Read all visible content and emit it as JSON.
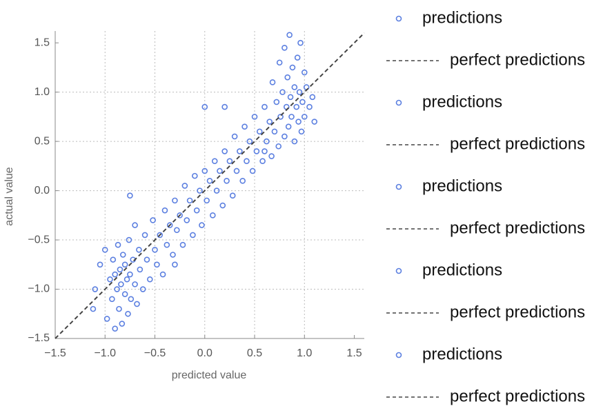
{
  "chart_data": {
    "type": "scatter",
    "x_label": "predicted value",
    "y_label": "actual value",
    "xlim": [
      -1.5,
      1.6
    ],
    "ylim": [
      -1.5,
      1.62
    ],
    "xticks": [
      {
        "value": -1.5,
        "label": "−1.5"
      },
      {
        "value": -1.0,
        "label": "−1.0"
      },
      {
        "value": -0.5,
        "label": "−0.5"
      },
      {
        "value": 0,
        "label": "0.0"
      },
      0.5,
      {
        "value": 1.0,
        "label": "1.0"
      },
      1.5
    ],
    "yticks": [
      {
        "value": -1.5,
        "label": "−1.5"
      },
      {
        "value": -1.0,
        "label": "−1.0"
      },
      {
        "value": -0.5,
        "label": "−0.5"
      },
      {
        "value": 0,
        "label": "0.0"
      },
      0.5,
      {
        "value": 1.0,
        "label": "1.0"
      },
      1.5
    ],
    "grid": true,
    "series": [
      {
        "name": "predictions",
        "kind": "points",
        "color": "#5b7fe0",
        "x": [
          -1.1,
          -1.12,
          -1.05,
          -1.0,
          -0.98,
          -0.95,
          -0.93,
          -0.92,
          -0.9,
          -0.9,
          -0.88,
          -0.87,
          -0.86,
          -0.85,
          -0.84,
          -0.83,
          -0.82,
          -0.8,
          -0.8,
          -0.78,
          -0.77,
          -0.76,
          -0.75,
          -0.74,
          -0.72,
          -0.7,
          -0.7,
          -0.68,
          -0.66,
          -0.65,
          -0.62,
          -0.6,
          -0.58,
          -0.55,
          -0.52,
          -0.5,
          -0.48,
          -0.45,
          -0.42,
          -0.4,
          -0.38,
          -0.35,
          -0.32,
          -0.3,
          -0.28,
          -0.25,
          -0.22,
          -0.2,
          -0.18,
          -0.15,
          -0.12,
          -0.1,
          -0.08,
          -0.05,
          -0.03,
          0.0,
          0.02,
          0.05,
          0.08,
          0.1,
          0.12,
          0.15,
          0.18,
          0.2,
          0.22,
          0.25,
          0.28,
          0.3,
          0.32,
          0.35,
          0.38,
          0.4,
          0.42,
          0.45,
          0.48,
          0.5,
          0.52,
          0.55,
          0.58,
          0.6,
          0.62,
          0.65,
          0.67,
          0.68,
          0.7,
          0.72,
          0.74,
          0.75,
          0.76,
          0.78,
          0.8,
          0.8,
          0.82,
          0.83,
          0.84,
          0.85,
          0.86,
          0.87,
          0.88,
          0.9,
          0.9,
          0.92,
          0.93,
          0.94,
          0.95,
          0.96,
          0.97,
          0.98,
          1.0,
          1.0,
          1.02,
          1.05,
          1.08,
          1.1,
          0.2,
          0.0,
          -0.3,
          0.6,
          -0.75
        ],
        "y": [
          -1.0,
          -1.2,
          -0.75,
          -0.6,
          -1.3,
          -0.9,
          -1.1,
          -0.7,
          -1.4,
          -0.85,
          -1.0,
          -0.55,
          -1.2,
          -0.8,
          -0.95,
          -1.35,
          -0.65,
          -1.05,
          -0.75,
          -0.9,
          -1.25,
          -0.5,
          -0.85,
          -1.1,
          -0.7,
          -0.95,
          -0.35,
          -1.15,
          -0.6,
          -0.8,
          -1.0,
          -0.45,
          -0.7,
          -0.9,
          -0.3,
          -0.6,
          -0.75,
          -0.45,
          -0.85,
          -0.2,
          -0.55,
          -0.35,
          -0.65,
          -0.1,
          -0.4,
          -0.25,
          -0.55,
          0.05,
          -0.3,
          -0.1,
          -0.45,
          0.15,
          -0.2,
          0.0,
          -0.35,
          0.2,
          -0.1,
          0.1,
          -0.25,
          0.3,
          0.0,
          0.2,
          -0.15,
          0.4,
          0.1,
          0.3,
          -0.05,
          0.55,
          0.2,
          0.4,
          0.1,
          0.65,
          0.3,
          0.5,
          0.2,
          0.75,
          0.4,
          0.6,
          0.3,
          0.85,
          0.5,
          0.7,
          0.35,
          1.1,
          0.6,
          0.9,
          0.45,
          1.3,
          0.75,
          1.0,
          0.55,
          1.45,
          0.85,
          1.15,
          0.65,
          1.58,
          0.95,
          0.75,
          1.25,
          0.5,
          1.05,
          0.85,
          1.35,
          0.7,
          1.0,
          1.5,
          0.6,
          0.9,
          1.2,
          0.75,
          1.05,
          0.85,
          0.95,
          0.7,
          0.85,
          0.85,
          -0.75,
          0.4,
          -0.05
        ]
      },
      {
        "name": "perfect predictions",
        "kind": "dashed-line",
        "color": "#444444",
        "x": [
          -1.5,
          1.6
        ],
        "y": [
          -1.5,
          1.6
        ]
      }
    ],
    "legend": [
      "predictions",
      "perfect predictions",
      "predictions",
      "perfect predictions",
      "predictions",
      "perfect predictions",
      "predictions",
      "perfect predictions",
      "predictions",
      "perfect predictions"
    ]
  }
}
